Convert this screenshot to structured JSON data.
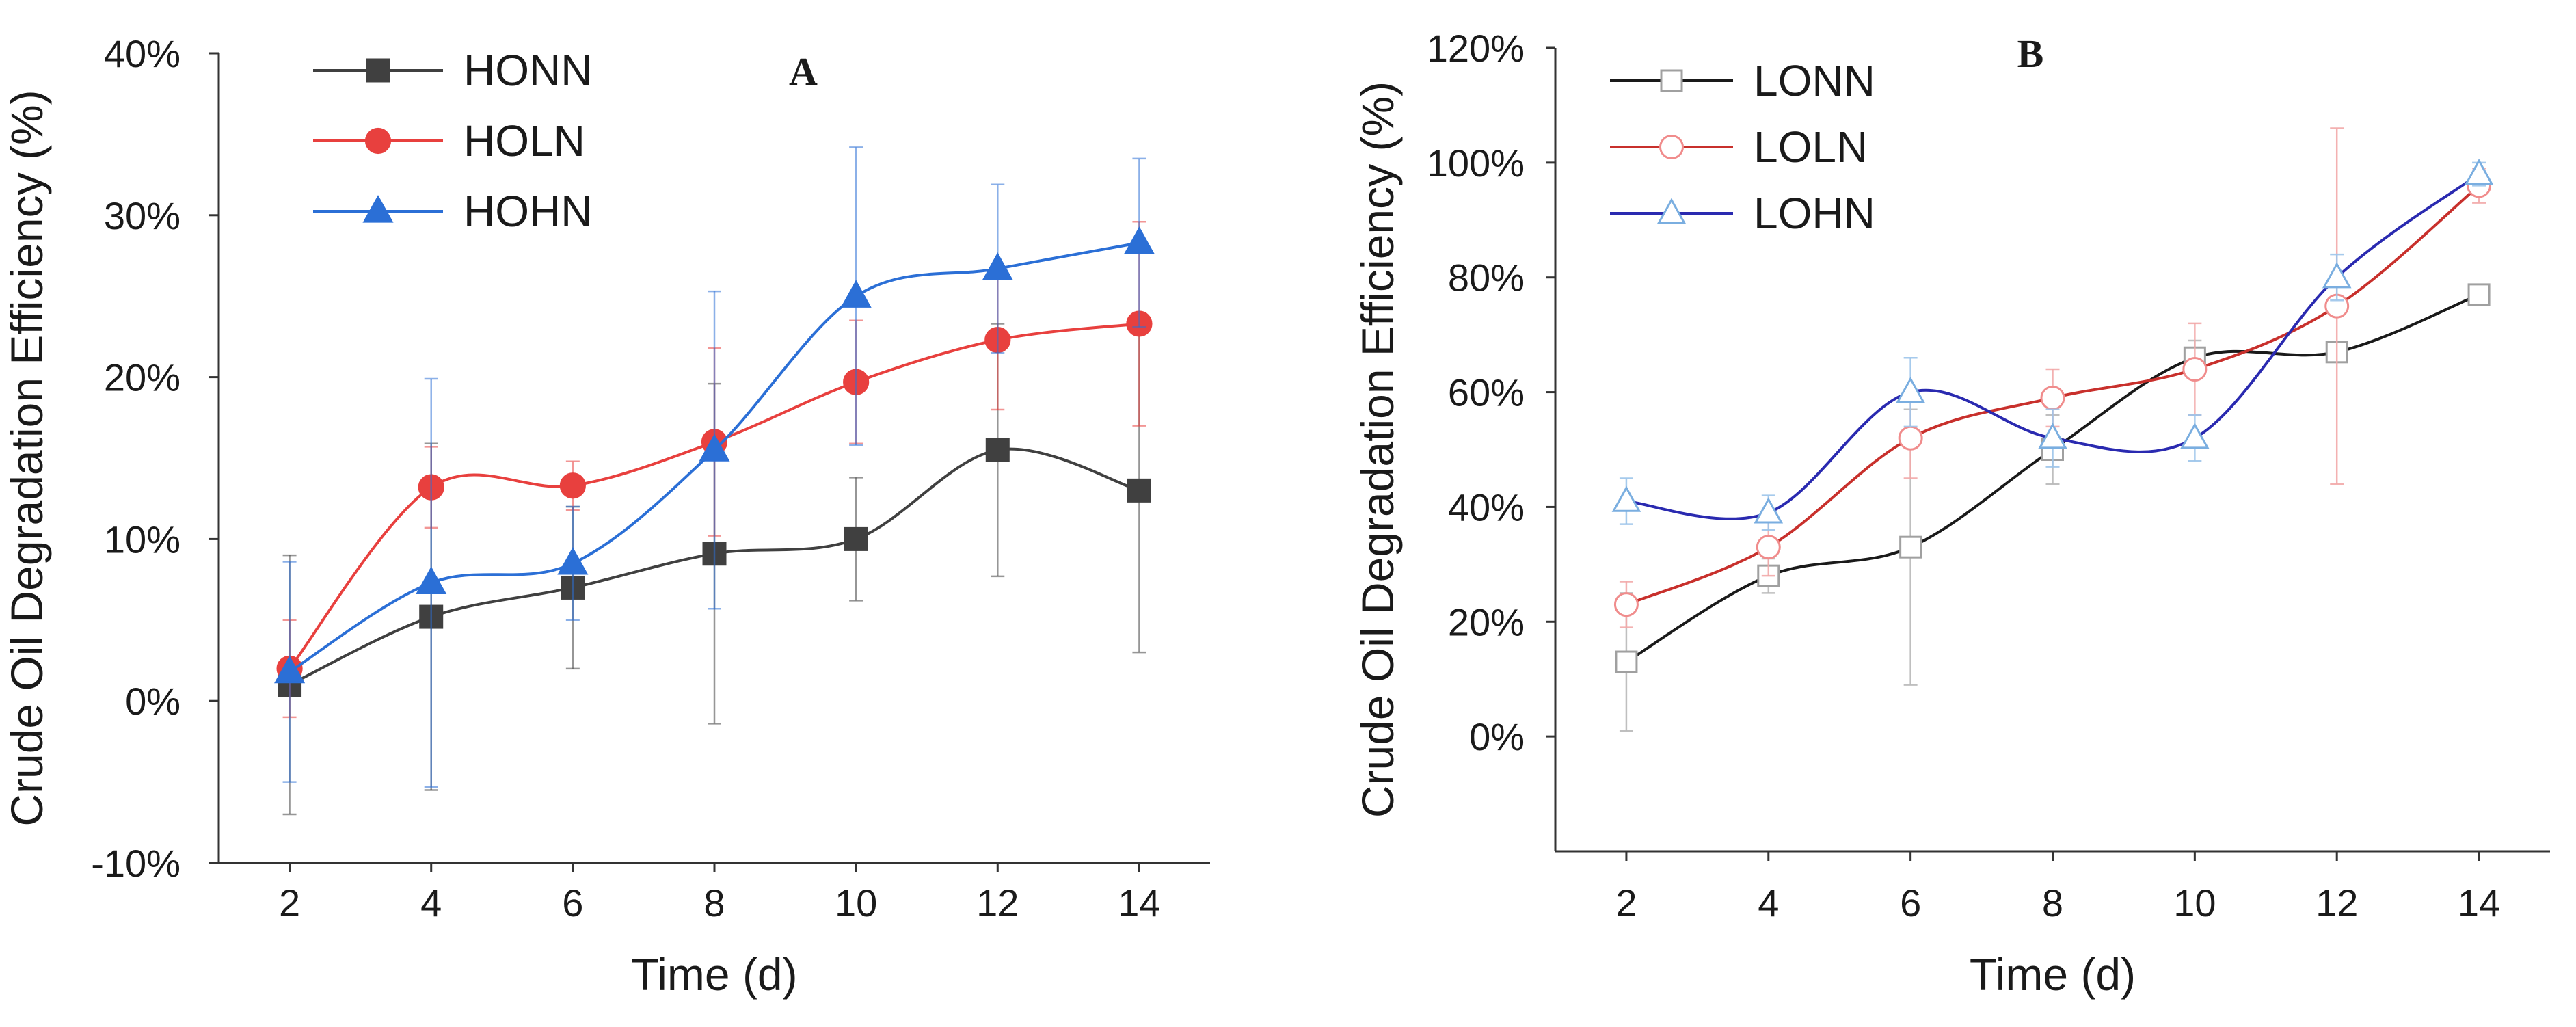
{
  "chart_data": [
    {
      "type": "line",
      "panel_label": "A",
      "title": "",
      "xlabel": "Time (d)",
      "ylabel": "Crude Oil Degradation Efficiency (%)",
      "x": [
        2,
        4,
        6,
        8,
        10,
        12,
        14
      ],
      "x_ticks": [
        "2",
        "4",
        "6",
        "8",
        "10",
        "12",
        "14"
      ],
      "xlim": [
        1,
        15
      ],
      "ylim": [
        -10,
        40
      ],
      "y_ticks": [
        -10,
        0,
        10,
        20,
        30,
        40
      ],
      "y_tick_labels": [
        "-10%",
        "0%",
        "10%",
        "20%",
        "30%",
        "40%"
      ],
      "grid": false,
      "legend_position": "top-left",
      "series": [
        {
          "name": "HONN",
          "color": "#404040",
          "marker": "square",
          "filled": true,
          "values": [
            1.0,
            5.2,
            7.0,
            9.1,
            10.0,
            15.5,
            13.0
          ],
          "errors": [
            8.0,
            10.7,
            5.0,
            10.5,
            3.8,
            7.8,
            10.0
          ]
        },
        {
          "name": "HOLN",
          "color": "#e8403e",
          "marker": "circle",
          "filled": true,
          "values": [
            2.0,
            13.2,
            13.3,
            16.0,
            19.7,
            22.3,
            23.3
          ],
          "errors": [
            3.0,
            2.5,
            1.5,
            5.8,
            3.8,
            4.3,
            6.3
          ]
        },
        {
          "name": "HOHN",
          "color": "#2b6fd6",
          "marker": "triangle",
          "filled": true,
          "values": [
            1.8,
            7.3,
            8.5,
            15.5,
            25.0,
            26.7,
            28.3
          ],
          "errors": [
            6.8,
            12.6,
            3.5,
            9.8,
            9.2,
            5.2,
            5.2
          ]
        }
      ]
    },
    {
      "type": "line",
      "panel_label": "B",
      "title": "",
      "xlabel": "Time (d)",
      "ylabel": "Crude Oil Degradation Efficiency (%)",
      "x": [
        2,
        4,
        6,
        8,
        10,
        12,
        14
      ],
      "x_ticks": [
        "2",
        "4",
        "6",
        "8",
        "10",
        "12",
        "14"
      ],
      "xlim": [
        1,
        15
      ],
      "ylim": [
        -20,
        120
      ],
      "y_ticks": [
        0,
        20,
        40,
        60,
        80,
        100,
        120
      ],
      "y_tick_labels": [
        "0%",
        "20%",
        "40%",
        "60%",
        "80%",
        "100%",
        "120%"
      ],
      "grid": false,
      "legend_position": "top-left",
      "series": [
        {
          "name": "LONN",
          "color": "#1a1a1a",
          "marker": "square",
          "filled": false,
          "marker_color": "#a0a0a0",
          "error_color": "#b8b8b8",
          "values": [
            13,
            28,
            33,
            50,
            66,
            67,
            77
          ],
          "errors": [
            12,
            3,
            24,
            6,
            3,
            1,
            1
          ]
        },
        {
          "name": "LOLN",
          "color": "#c8302c",
          "marker": "circle",
          "filled": false,
          "marker_color": "#f08c8c",
          "error_color": "#f2a8a8",
          "values": [
            23,
            33,
            52,
            59,
            64,
            75,
            96
          ],
          "errors": [
            4,
            5,
            7,
            5,
            8,
            31,
            3
          ]
        },
        {
          "name": "LOHN",
          "color": "#2a2ab0",
          "marker": "triangle",
          "filled": false,
          "marker_color": "#7aaee0",
          "error_color": "#9cc4ea",
          "values": [
            41,
            39,
            60,
            52,
            52,
            80,
            98
          ],
          "errors": [
            4,
            3,
            6,
            5,
            4,
            4,
            2
          ]
        }
      ]
    }
  ]
}
